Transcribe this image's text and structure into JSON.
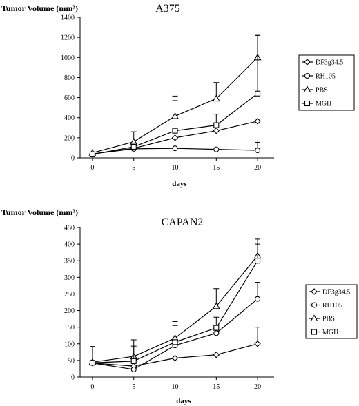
{
  "chart_data": [
    {
      "type": "line",
      "title": "A375",
      "ylabel": "Tumor Volume (mm³)",
      "xlabel": "days",
      "x": [
        0,
        5,
        10,
        15,
        20
      ],
      "xticks": [
        "0",
        "5",
        "10",
        "15",
        "20"
      ],
      "ylim": [
        0,
        1400
      ],
      "yticks": [
        0,
        200,
        400,
        600,
        800,
        1000,
        1200,
        1400
      ],
      "grid": false,
      "legend_position": "right",
      "series": [
        {
          "name": "DF3g34.5",
          "marker": "diamond",
          "values": [
            40,
            95,
            200,
            270,
            365
          ],
          "errors": [
            null,
            null,
            null,
            null,
            null
          ]
        },
        {
          "name": "RH105",
          "marker": "circle",
          "values": [
            40,
            90,
            95,
            85,
            75
          ],
          "errors": [
            null,
            null,
            null,
            null,
            80
          ]
        },
        {
          "name": "PBS",
          "marker": "triangle",
          "values": [
            50,
            160,
            415,
            590,
            1000
          ],
          "errors": [
            null,
            100,
            200,
            160,
            220
          ]
        },
        {
          "name": "MGH",
          "marker": "square",
          "values": [
            35,
            110,
            270,
            325,
            640
          ],
          "errors": [
            null,
            null,
            300,
            110,
            580
          ]
        }
      ]
    },
    {
      "type": "line",
      "title": "CAPAN2",
      "ylabel": "Tumor Volume (mm³)",
      "xlabel": "days",
      "x": [
        0,
        5,
        10,
        15,
        20
      ],
      "xticks": [
        "0",
        "5",
        "10",
        "15",
        "20"
      ],
      "ylim": [
        0,
        450
      ],
      "yticks": [
        0,
        50,
        100,
        150,
        200,
        250,
        300,
        350,
        400,
        450
      ],
      "grid": false,
      "legend_position": "right",
      "series": [
        {
          "name": "DF3g34.5",
          "marker": "diamond",
          "values": [
            42,
            33,
            57,
            67,
            100
          ],
          "errors": [
            null,
            null,
            null,
            null,
            50
          ]
        },
        {
          "name": "RH105",
          "marker": "circle",
          "values": [
            42,
            23,
            95,
            132,
            235
          ],
          "errors": [
            50,
            null,
            null,
            null,
            50
          ]
        },
        {
          "name": "PBS",
          "marker": "triangle",
          "values": [
            45,
            62,
            117,
            213,
            365
          ],
          "errors": [
            null,
            50,
            50,
            53,
            50
          ]
        },
        {
          "name": "MGH",
          "marker": "square",
          "values": [
            43,
            48,
            105,
            148,
            350
          ],
          "errors": [
            null,
            45,
            50,
            32,
            50
          ]
        }
      ]
    }
  ]
}
